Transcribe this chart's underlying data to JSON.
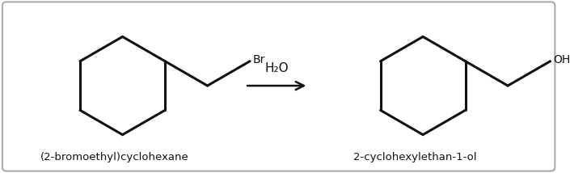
{
  "background_color": "#ffffff",
  "border_color": "#aaaaaa",
  "line_color": "#111111",
  "text_color": "#111111",
  "label1": "(2-bromoethyl)cyclohexane",
  "label2": "2-cyclohexylethan-1-ol",
  "reagent": "H₂O",
  "br_label": "Br",
  "oh_label": "OH",
  "fig_width": 7.05,
  "fig_height": 2.14,
  "dpi": 100,
  "line_width": 2.2
}
